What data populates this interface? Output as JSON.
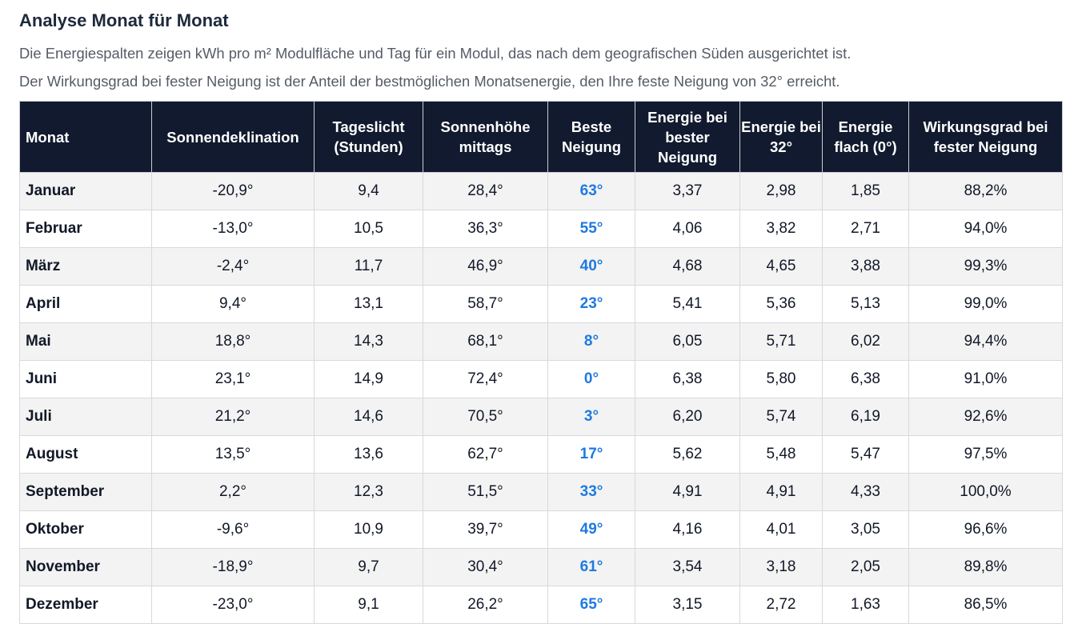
{
  "section": {
    "title": "Analyse Monat für Monat",
    "description_line1": "Die Energiespalten zeigen kWh pro m² Modulfläche und Tag für ein Modul, das nach dem geografischen Süden ausgerichtet ist.",
    "description_line2": "Der Wirkungsgrad bei fester Neigung ist der Anteil der bestmöglichen Monatsenergie, den Ihre feste Neigung von 32° erreicht."
  },
  "colors": {
    "header_bg": "#111a2e",
    "best_tilt_accent": "#1f7ae0",
    "row_stripe": "#f3f3f3"
  },
  "table": {
    "columns": [
      "Monat",
      "Sonnendeklination",
      "Tageslicht (Stunden)",
      "Sonnenhöhe mittags",
      "Beste Neigung",
      "Energie bei bester Neigung",
      "Energie bei 32°",
      "Energie flach (0°)",
      "Wirkungsgrad bei fester Neigung"
    ],
    "rows": [
      [
        "Januar",
        "-20,9°",
        "9,4",
        "28,4°",
        "63°",
        "3,37",
        "2,98",
        "1,85",
        "88,2%"
      ],
      [
        "Februar",
        "-13,0°",
        "10,5",
        "36,3°",
        "55°",
        "4,06",
        "3,82",
        "2,71",
        "94,0%"
      ],
      [
        "März",
        "-2,4°",
        "11,7",
        "46,9°",
        "40°",
        "4,68",
        "4,65",
        "3,88",
        "99,3%"
      ],
      [
        "April",
        "9,4°",
        "13,1",
        "58,7°",
        "23°",
        "5,41",
        "5,36",
        "5,13",
        "99,0%"
      ],
      [
        "Mai",
        "18,8°",
        "14,3",
        "68,1°",
        "8°",
        "6,05",
        "5,71",
        "6,02",
        "94,4%"
      ],
      [
        "Juni",
        "23,1°",
        "14,9",
        "72,4°",
        "0°",
        "6,38",
        "5,80",
        "6,38",
        "91,0%"
      ],
      [
        "Juli",
        "21,2°",
        "14,6",
        "70,5°",
        "3°",
        "6,20",
        "5,74",
        "6,19",
        "92,6%"
      ],
      [
        "August",
        "13,5°",
        "13,6",
        "62,7°",
        "17°",
        "5,62",
        "5,48",
        "5,47",
        "97,5%"
      ],
      [
        "September",
        "2,2°",
        "12,3",
        "51,5°",
        "33°",
        "4,91",
        "4,91",
        "4,33",
        "100,0%"
      ],
      [
        "Oktober",
        "-9,6°",
        "10,9",
        "39,7°",
        "49°",
        "4,16",
        "4,01",
        "3,05",
        "96,6%"
      ],
      [
        "November",
        "-18,9°",
        "9,7",
        "30,4°",
        "61°",
        "3,54",
        "3,18",
        "2,05",
        "89,8%"
      ],
      [
        "Dezember",
        "-23,0°",
        "9,1",
        "26,2°",
        "65°",
        "3,15",
        "2,72",
        "1,63",
        "86,5%"
      ]
    ]
  }
}
